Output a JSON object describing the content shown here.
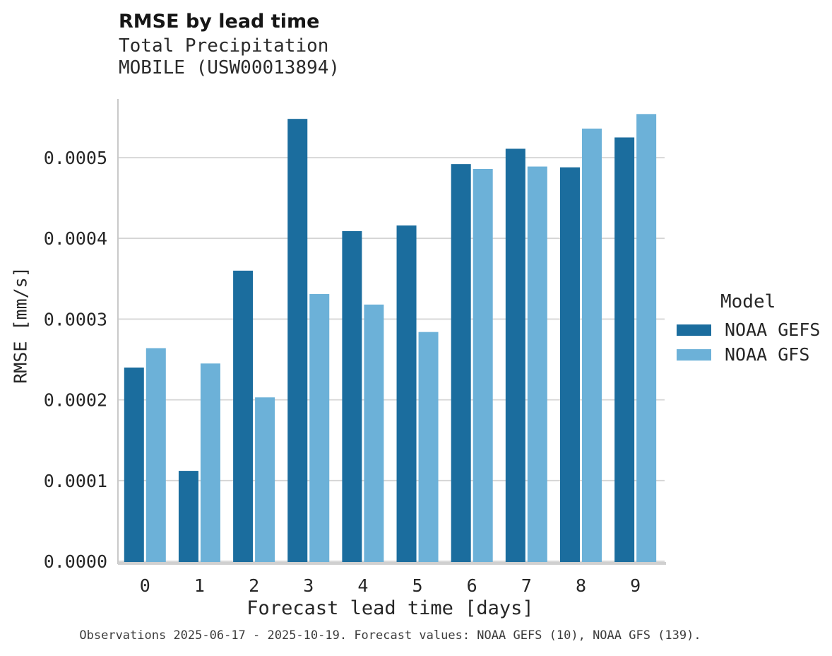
{
  "title": "RMSE by lead time",
  "subtitle_line1": "Total Precipitation",
  "subtitle_line2": "MOBILE (USW00013894)",
  "footer": "Observations 2025-06-17 - 2025-10-19. Forecast values: NOAA GEFS (10), NOAA GFS (139).",
  "legend": {
    "title": "Model",
    "items": [
      {
        "label": "NOAA GEFS",
        "color": "#1b6d9e"
      },
      {
        "label": "NOAA GFS",
        "color": "#6cb1d8"
      }
    ]
  },
  "chart_data": {
    "type": "bar",
    "title": "RMSE by lead time",
    "subtitle": [
      "Total Precipitation",
      "MOBILE (USW00013894)"
    ],
    "xlabel": "Forecast lead time [days]",
    "ylabel": "RMSE [mm/s]",
    "categories": [
      "0",
      "1",
      "2",
      "3",
      "4",
      "5",
      "6",
      "7",
      "8",
      "9"
    ],
    "series": [
      {
        "name": "NOAA GEFS",
        "color": "#1b6d9e",
        "values": [
          0.00024,
          0.000112,
          0.00036,
          0.000548,
          0.000409,
          0.000416,
          0.000492,
          0.000511,
          0.000488,
          0.000525
        ]
      },
      {
        "name": "NOAA GFS",
        "color": "#6cb1d8",
        "values": [
          0.000264,
          0.000245,
          0.000203,
          0.000331,
          0.000318,
          0.000284,
          0.000486,
          0.000489,
          0.000536,
          0.000554
        ]
      }
    ],
    "yticks": [
      0,
      0.0001,
      0.0002,
      0.0003,
      0.0004,
      0.0005
    ],
    "ytick_labels": [
      "0.0000",
      "0.0001",
      "0.0002",
      "0.0003",
      "0.0004",
      "0.0005"
    ],
    "ylim": [
      0,
      0.000573
    ],
    "grid": "horizontal",
    "legend_position": "right",
    "caption": "Observations 2025-06-17 - 2025-10-19. Forecast values: NOAA GEFS (10), NOAA GFS (139)."
  },
  "colors": {
    "grid": "#d4d4d4",
    "spine": "#c9c9c9",
    "bottom_spine": "#d0d0d0",
    "tick_text": "#262626"
  }
}
